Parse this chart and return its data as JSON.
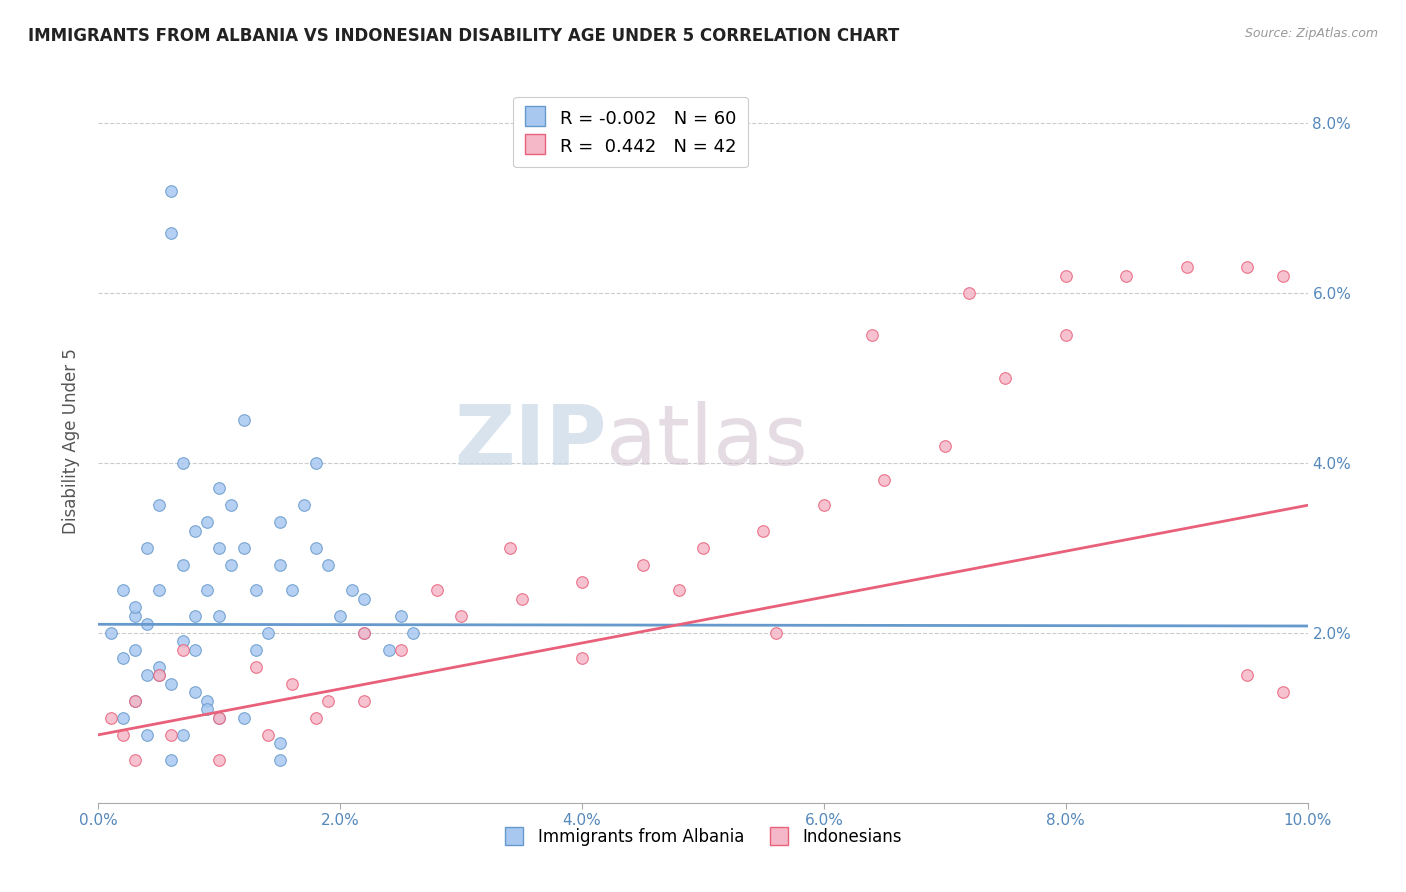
{
  "title": "IMMIGRANTS FROM ALBANIA VS INDONESIAN DISABILITY AGE UNDER 5 CORRELATION CHART",
  "source": "Source: ZipAtlas.com",
  "ylabel": "Disability Age Under 5",
  "xlim": [
    0.0,
    0.1
  ],
  "ylim": [
    0.0,
    0.085
  ],
  "xtick_labels": [
    "0.0%",
    "2.0%",
    "4.0%",
    "6.0%",
    "8.0%",
    "10.0%"
  ],
  "xtick_values": [
    0.0,
    0.02,
    0.04,
    0.06,
    0.08,
    0.1
  ],
  "ytick_labels": [
    "",
    "2.0%",
    "4.0%",
    "6.0%",
    "8.0%"
  ],
  "ytick_values": [
    0.0,
    0.02,
    0.04,
    0.06,
    0.08
  ],
  "legend_r_albania": "-0.002",
  "legend_n_albania": "60",
  "legend_r_indonesian": "0.442",
  "legend_n_indonesian": "42",
  "color_albania": "#A8C8F0",
  "color_indonesian": "#F5B8C8",
  "line_color_albania": "#6699CC",
  "line_color_indonesian": "#E8607A",
  "watermark_zip": "ZIP",
  "watermark_atlas": "atlas",
  "albania_points_x": [
    0.001,
    0.002,
    0.003,
    0.003,
    0.004,
    0.004,
    0.005,
    0.005,
    0.006,
    0.006,
    0.007,
    0.007,
    0.008,
    0.008,
    0.008,
    0.009,
    0.009,
    0.01,
    0.01,
    0.01,
    0.011,
    0.011,
    0.012,
    0.012,
    0.013,
    0.013,
    0.014,
    0.015,
    0.015,
    0.016,
    0.017,
    0.018,
    0.018,
    0.019,
    0.02,
    0.021,
    0.022,
    0.024,
    0.025,
    0.026,
    0.002,
    0.003,
    0.004,
    0.005,
    0.006,
    0.007,
    0.009,
    0.01,
    0.012,
    0.015,
    0.003,
    0.006,
    0.002,
    0.004,
    0.005,
    0.007,
    0.008,
    0.009,
    0.015,
    0.022
  ],
  "albania_points_y": [
    0.02,
    0.025,
    0.018,
    0.022,
    0.03,
    0.015,
    0.035,
    0.025,
    0.067,
    0.072,
    0.04,
    0.028,
    0.032,
    0.022,
    0.018,
    0.033,
    0.025,
    0.037,
    0.03,
    0.022,
    0.035,
    0.028,
    0.045,
    0.03,
    0.025,
    0.018,
    0.02,
    0.033,
    0.028,
    0.025,
    0.035,
    0.04,
    0.03,
    0.028,
    0.022,
    0.025,
    0.02,
    0.018,
    0.022,
    0.02,
    0.01,
    0.012,
    0.008,
    0.015,
    0.005,
    0.008,
    0.012,
    0.01,
    0.01,
    0.005,
    0.023,
    0.014,
    0.017,
    0.021,
    0.016,
    0.019,
    0.013,
    0.011,
    0.007,
    0.024
  ],
  "indonesian_points_x": [
    0.001,
    0.002,
    0.003,
    0.005,
    0.007,
    0.01,
    0.013,
    0.016,
    0.019,
    0.022,
    0.025,
    0.03,
    0.035,
    0.04,
    0.045,
    0.05,
    0.055,
    0.06,
    0.065,
    0.07,
    0.075,
    0.08,
    0.085,
    0.09,
    0.095,
    0.098,
    0.003,
    0.006,
    0.01,
    0.014,
    0.018,
    0.022,
    0.028,
    0.034,
    0.04,
    0.048,
    0.056,
    0.064,
    0.072,
    0.08,
    0.098,
    0.095
  ],
  "indonesian_points_y": [
    0.01,
    0.008,
    0.012,
    0.015,
    0.018,
    0.01,
    0.016,
    0.014,
    0.012,
    0.02,
    0.018,
    0.022,
    0.024,
    0.026,
    0.028,
    0.03,
    0.032,
    0.035,
    0.038,
    0.042,
    0.05,
    0.055,
    0.062,
    0.063,
    0.063,
    0.062,
    0.005,
    0.008,
    0.005,
    0.008,
    0.01,
    0.012,
    0.025,
    0.03,
    0.017,
    0.025,
    0.02,
    0.055,
    0.06,
    0.062,
    0.013,
    0.015
  ],
  "albania_line_x": [
    0.0,
    0.1
  ],
  "albania_line_y": [
    0.021,
    0.0208
  ],
  "indonesian_line_x": [
    0.0,
    0.1
  ],
  "indonesian_line_y": [
    0.008,
    0.035
  ],
  "grid_color": "#CCCCCC",
  "background_color": "#FFFFFF"
}
